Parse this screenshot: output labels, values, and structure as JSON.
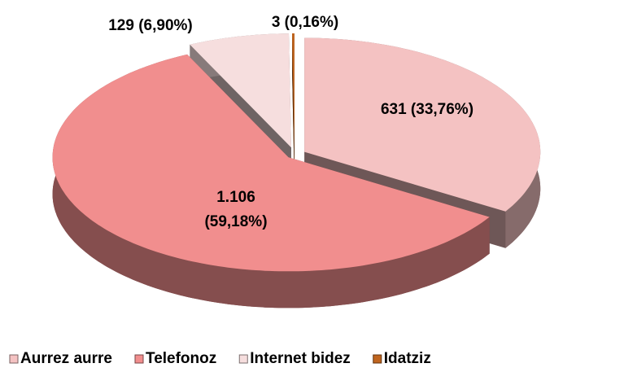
{
  "chart_data": {
    "type": "pie3d",
    "categories": [
      "Aurrez aurre",
      "Telefonoz",
      "Internet bidez",
      "Idatziz"
    ],
    "values": [
      631,
      1106,
      129,
      3
    ],
    "value_labels": [
      "631 (33,76%)",
      "1.106\n(59,18%)",
      "129 (6,90%)",
      "3 (0,16%)"
    ],
    "colors": [
      "#f4c2c2",
      "#f18e8e",
      "#f6dede",
      "#c0651f"
    ],
    "legend": "bottom"
  }
}
